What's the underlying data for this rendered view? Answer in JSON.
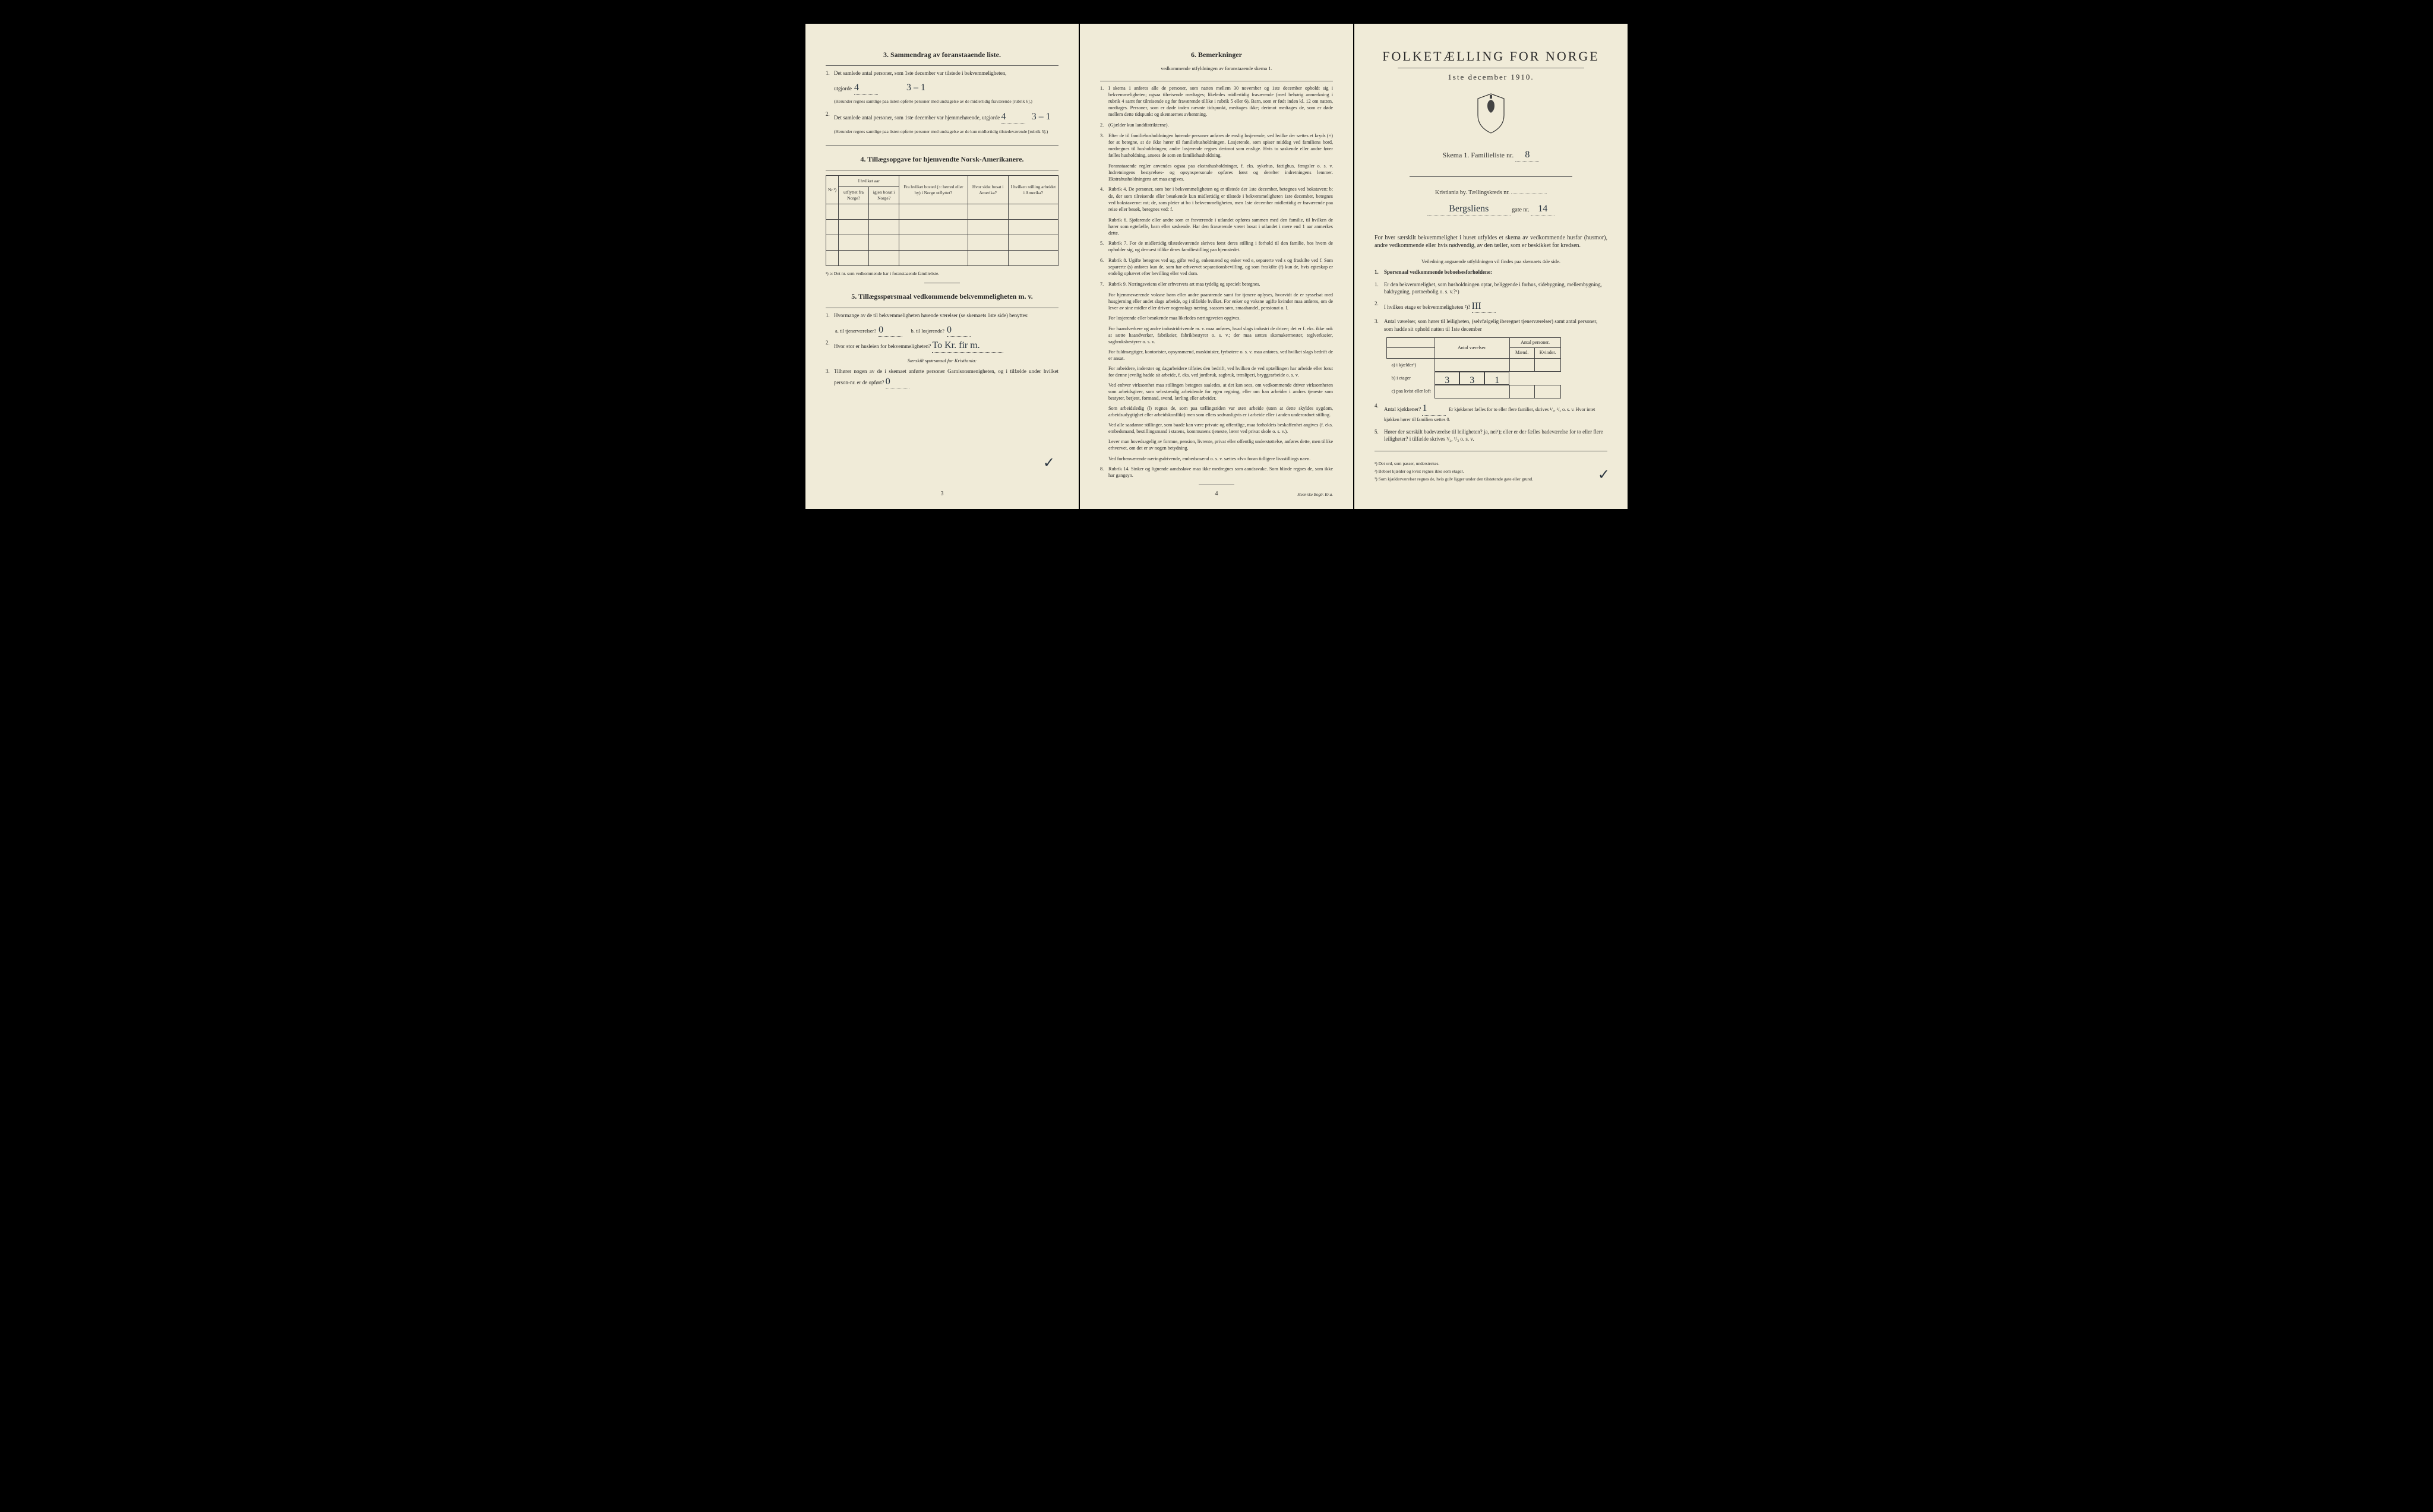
{
  "colors": {
    "paper": "#f0ebd8",
    "ink": "#2a2a2a",
    "handwriting": "#2a3540",
    "border": "#444444",
    "background": "#000000"
  },
  "page1": {
    "section3": {
      "title": "3.  Sammendrag av foranstaaende liste.",
      "q1_text": "Det samlede antal personer, som 1ste december var tilstede i bekvemmeligheten,",
      "q1_label": "utgjorde",
      "q1_val": "4",
      "q1_hand": "3 – 1",
      "q1_note": "(Herunder regnes samtlige paa listen opførte personer med undtagelse av de midlertidig fraværende [rubrik 6].)",
      "q2_text": "Det samlede antal personer, som 1ste december var hjemmehørende, utgjorde",
      "q2_val": "4",
      "q2_hand": "3 – 1",
      "q2_note": "(Herunder regnes samtlige paa listen opførte personer med undtagelse av de kun midlertidig tilstedeværende [rubrik 5].)"
    },
    "section4": {
      "title": "4.  Tillægsopgave for hjemvendte Norsk-Amerikanere.",
      "headers": {
        "nr": "Nr.¹)",
        "years_group": "I hvilket aar",
        "emigrated": "utflyttet fra Norge?",
        "returned": "igjen bosat i Norge?",
        "from_where": "Fra hvilket bosted (ɔ: herred eller by) i Norge utflyttet?",
        "last_us": "Hvor sidst bosat i Amerika?",
        "occupation": "I hvilken stilling arbeidet i Amerika?"
      },
      "footnote": "¹) ɔ: Det nr. som vedkommende har i foranstaaende familieliste."
    },
    "section5": {
      "title": "5.  Tillægsspørsmaal vedkommende bekvemmeligheten m. v.",
      "q1_text": "Hvormange av de til bekvemmeligheten hørende værelser (se skemaets 1ste side) benyttes:",
      "q1a_label": "a.  til tjenerværelser?",
      "q1a_val": "0",
      "q1b_label": "b.  til losjerende?",
      "q1b_val": "0",
      "q2_label": "Hvor stor er husleien for bekvemmeligheten?",
      "q2_val": "To Kr. fir m.",
      "special": "Særskilt spørsmaal for Kristiania:",
      "q3_text": "Tilhører nogen av de i skemaet anførte personer Garnisonsmenigheten, og i tilfælde under hvilket person-nr. er de opført?",
      "q3_val": "0"
    },
    "page_num": "3"
  },
  "page2": {
    "title": "6.  Bemerkninger",
    "subtitle": "vedkommende utfyldningen av foranstaaende skema 1.",
    "items": [
      {
        "n": "1.",
        "t": "I skema 1 anføres alle de personer, som natten mellem 30 november og 1ste december opholdt sig i bekvemmeligheten; ogsaa tilreisende medtages; likeledes midlertidig fraværende (med behørig anmerkning i rubrik 4 samt for tilreisende og for fraværende tillike i rubrik 5 eller 6). Barn, som er født inden kl. 12 om natten, medtages. Personer, som er døde inden nævnte tidspunkt, medtages ikke; derimot medtages de, som er døde mellem dette tidspunkt og skemaernes avhentning."
      },
      {
        "n": "2.",
        "t": "(Gjælder kun landdistrikterne)."
      },
      {
        "n": "3.",
        "t": "Efter de til familiehusholdningen hørende personer anføres de enslig losjerende, ved hvilke der sættes et kryds (×) for at betegne, at de ikke hører til familiehusholdningen. Losjerende, som spiser middag ved familiens bord, medregnes til husholdningen; andre losjerende regnes derimot som enslige. Hvis to søskende eller andre fører fælles husholdning, ansees de som en familiehusholdning.",
        "sub": "Foranstaaende regler anvendes ogsaa paa ekstrahusholdninger, f. eks. sykehus, fattighus, fængsler o. s. v. Indretningens bestyrelses- og opsynspersonale opføres først og derefter indretningens lemmer. Ekstrahusholdningens art maa angives."
      },
      {
        "n": "4.",
        "t": "Rubrik 4. De personer, som bor i bekvemmeligheten og er tilstede der 1ste december, betegnes ved bokstaven: b; de, der som tilreisende eller besøkende kun midlertidig er tilstede i bekvemmeligheten 1ste december, betegnes ved bokstaverne: mt; de, som pleier at bo i bekvemmeligheten, men 1ste december midlertidig er fraværende paa reise eller besøk, betegnes ved: f.",
        "sub": "Rubrik 6. Sjøfarende eller andre som er fraværende i utlandet opføres sammen med den familie, til hvilken de hører som egtefælle, barn eller søskende. Har den fraværende været bosat i utlandet i mere end 1 aar anmerkes dette."
      },
      {
        "n": "5.",
        "t": "Rubrik 7. For de midlertidig tilstedeværende skrives først deres stilling i forhold til den familie, hos hvem de opholder sig, og dernæst tillike deres familiestilling paa hjemstedet."
      },
      {
        "n": "6.",
        "t": "Rubrik 8. Ugifte betegnes ved ug, gifte ved g, enkemænd og enker ved e, separerte ved s og fraskilte ved f. Som separerte (s) anføres kun de, som har erhvervet separationsbevilling, og som fraskilte (f) kun de, hvis egteskap er endelig ophævet efter bevilling eller ved dom."
      },
      {
        "n": "7.",
        "t": "Rubrik 9. Næringsveiens eller erhvervets art maa tydelig og specielt betegnes."
      }
    ],
    "paras": [
      "For hjemmeværende voksne børn eller andre paarørende samt for tjenere oplyses, hvorvidt de er sysselsat med husgjerning eller andet slags arbeide, og i tilfælde hvilket. For enker og voksne ugifte kvinder maa anføres, om de lever av sine midler eller driver nogenslags næring, saasom søm, smaahandel, pensionat o. l.",
      "For losjerende eller besøkende maa likeledes næringsveien opgives.",
      "For haandverkere og andre industridrivende m. v. maa anføres, hvad slags industri de driver; det er f. eks. ikke nok at sætte haandverker, fabrikeier, fabrikbestyrer o. s. v.; der maa sættes skomakermester, teglverkseier, sagbruksbestyrer o. s. v.",
      "For fuldmægtiger, kontorister, opsynsmænd, maskinister, fyrbøtere o. s. v. maa anføres, ved hvilket slags bedrift de er ansat.",
      "For arbeidere, inderster og dagarbeidere tilføies den bedrift, ved hvilken de ved optællingen har arbeide eller forut for denne jevnlig hadde sit arbeide, f. eks. ved jordbruk, sagbruk, træsliperi, bryggearbeide o. s. v.",
      "Ved enhver virksomhet maa stillingen betegnes saaledes, at det kan sees, om vedkommende driver virksomheten som arbeidsgiver, som selvstændig arbeidende for egen regning, eller om han arbeider i andres tjeneste som bestyrer, betjent, formand, svend, lærling eller arbeider.",
      "Som arbeidsledig (l) regnes de, som paa tællingstiden var uten arbeide (uten at dette skyldes sygdom, arbeidsudygtighet eller arbeidskonflikt) men som ellers sedvanligvis er i arbeide eller i anden underordnet stilling.",
      "Ved alle saadanne stillinger, som baade kan være private og offentlige, maa forholdets beskaffenhet angives (f. eks. embedsmand, bestillingsmand i statens, kommunens tjeneste, lærer ved privat skole o. s. v.).",
      "Lever man hovedsagelig av formue, pension, livrente, privat eller offentlig understøttelse, anføres dette, men tillike erhvervet, om det er av nogen betydning.",
      "Ved forhenværende næringsdrivende, embedsmænd o. s. v. sættes «fv» foran tidligere livsstillings navn."
    ],
    "item8": {
      "n": "8.",
      "t": "Rubrik 14. Sinker og lignende aandssløve maa ikke medregnes som aandssvake. Som blinde regnes de, som ikke har gangsyn."
    },
    "page_num": "4",
    "printer": "Steen'ske Bogtr.  Kr.a."
  },
  "page3": {
    "title": "FOLKETÆLLING FOR NORGE",
    "date": "1ste december 1910.",
    "skema": "Skema 1.   Familieliste nr.",
    "skema_val": "8",
    "city": "Kristiania by.  Tællingskreds nr.",
    "city_val": "",
    "street_hand": "Bergsliens",
    "street_suffix": "gate nr.",
    "street_num": "14",
    "intro": "For hver særskilt bekvemmelighet i huset utfyldes et skema av vedkommende husfar (husmor), andre vedkommende eller hvis nødvendig, av den tæller, som er beskikket for kredsen.",
    "guide": "Veiledning angaaende utfyldningen vil findes paa skemaets 4de side.",
    "q_head": "Spørsmaal vedkommende beboelsesforholdene:",
    "q1": "Er den bekvemmelighet, som husholdningen optar, beliggende i forhus, sidebygning, mellembygning, bakbygning, portnerbolig o. s. v.?¹)",
    "q2": "I hvilken etage er bekvemmeligheten ²)?",
    "q2_val": "III",
    "q3": "Antal værelser, som hører til leiligheten, (selvfølgelig iberegnet tjenerværelser) samt antal personer, som hadde sit ophold natten til 1ste december",
    "table": {
      "h1": "Antal værelser.",
      "h2": "Antal personer.",
      "h2a": "Mænd.",
      "h2b": "Kvinder.",
      "rows": [
        {
          "label": "a) i kjælder³)",
          "v": "",
          "m": "",
          "k": ""
        },
        {
          "label": "b) i etager",
          "v": "3",
          "m": "3",
          "k": "1"
        },
        {
          "label": "c) paa kvist eller loft",
          "v": "",
          "m": "",
          "k": ""
        }
      ]
    },
    "q4": "Antal kjøkkener?",
    "q4_val": "1",
    "q4_rest": "Er kjøkkenet fælles for to eller flere familier, skrives ¹/₂, ¹/₃ o. s. v.  Hvor intet kjøkken hører til familien sættes 0.",
    "q5": "Hører der særskilt badeværelse til leiligheten? ja, nei¹); eller er der fælles badeværelse for to eller flere leiligheter? i tilfælde skrives ¹/₂, ¹/₃ o. s. v.",
    "footnotes": [
      "¹) Det ord, som passer, understrekes.",
      "²) Beboet kjælder og kvist regnes ikke som etager.",
      "³) Som kjælderværelser regnes de, hvis gulv ligger under den tilstøtende gate eller grund."
    ]
  }
}
